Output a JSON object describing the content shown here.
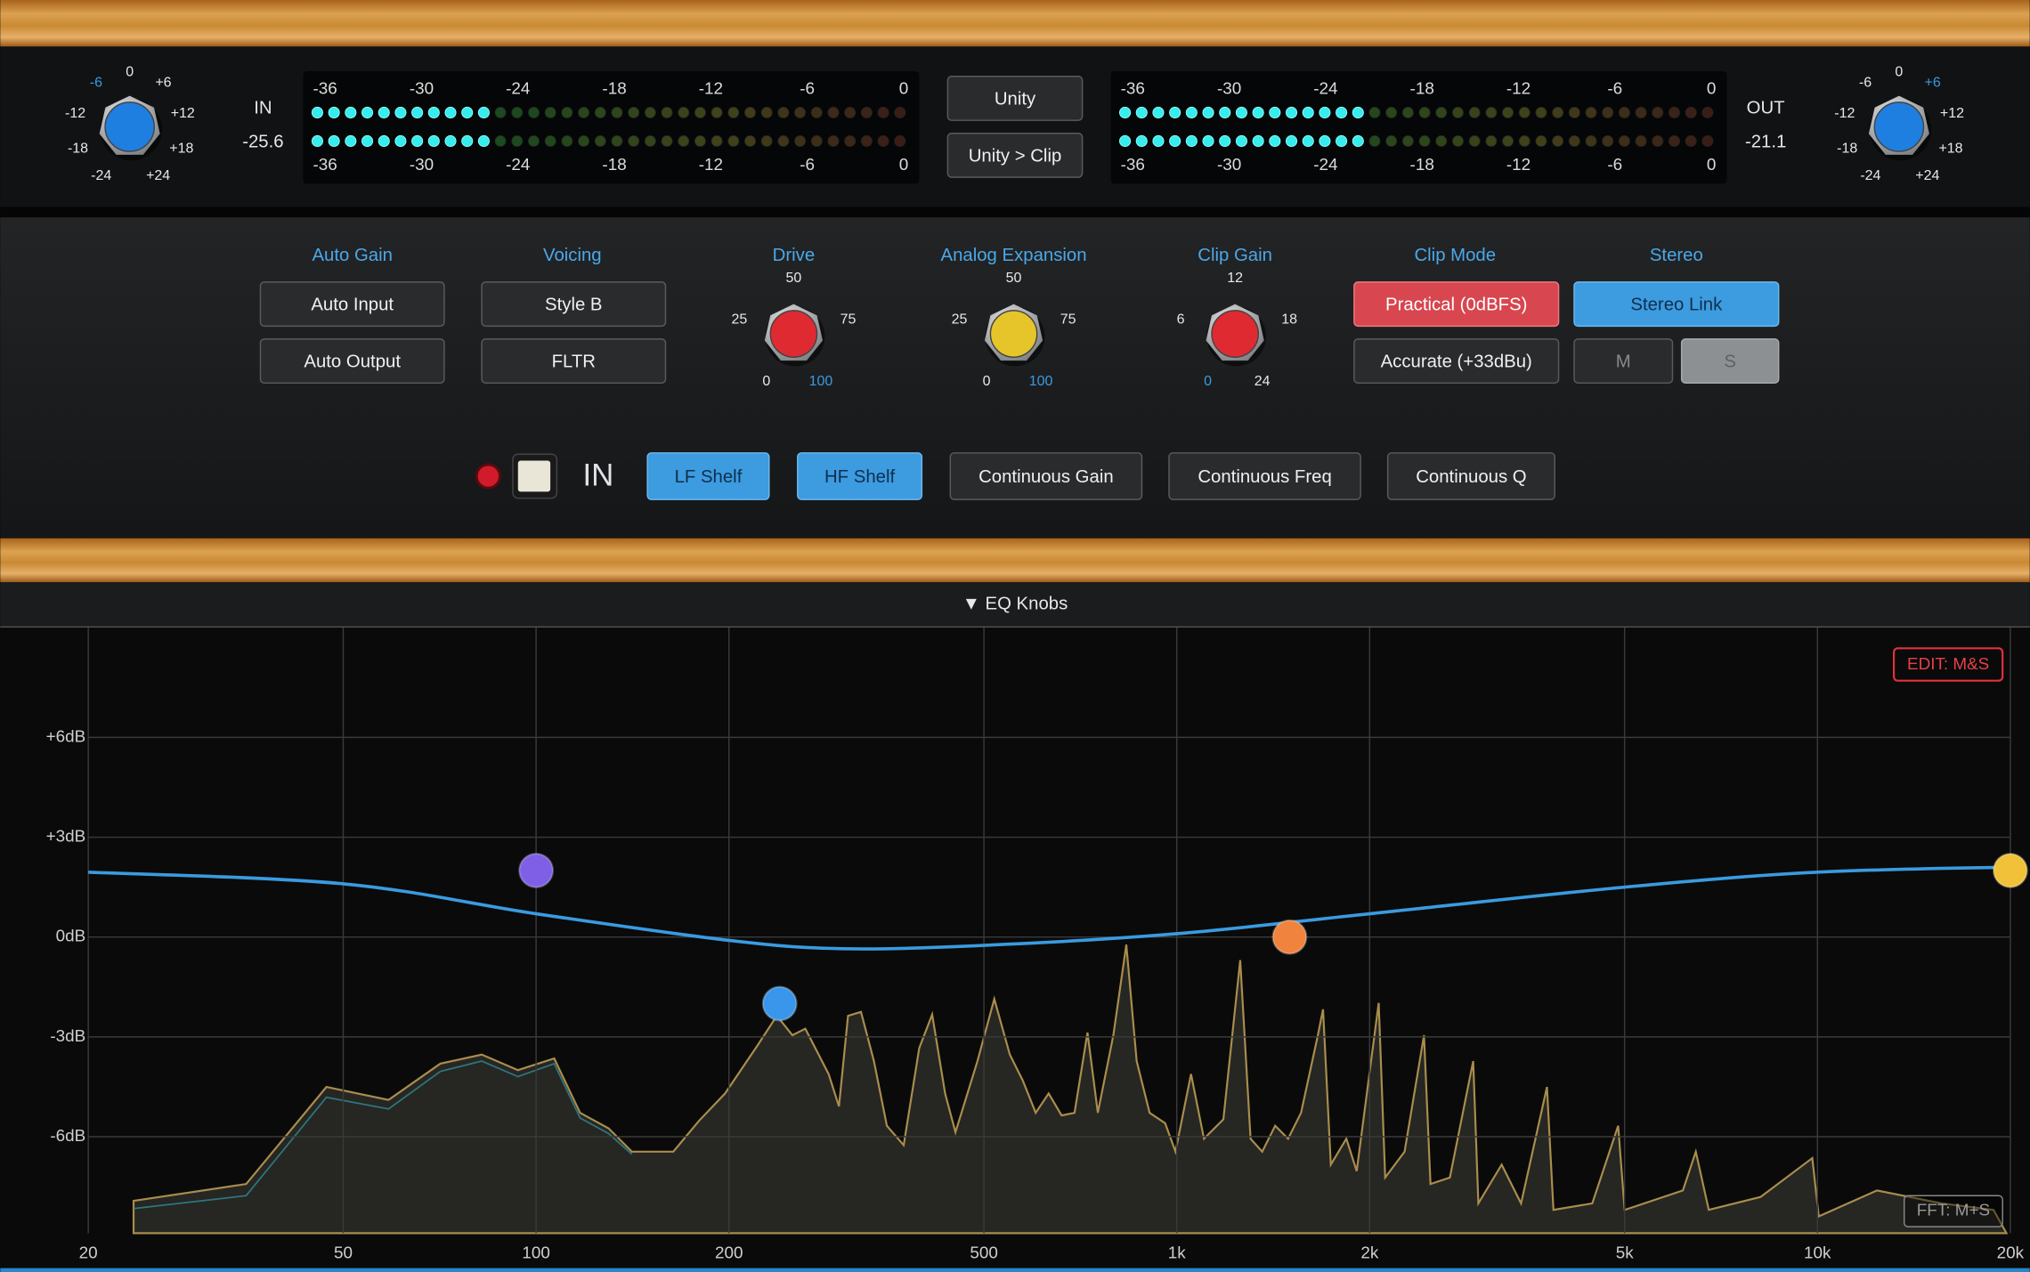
{
  "input": {
    "label": "IN",
    "level": "-25.6",
    "knob": [
      "-6",
      "0",
      "+6",
      "-12",
      "+12",
      "-18",
      "+18",
      "-24",
      "+24"
    ]
  },
  "output": {
    "label": "OUT",
    "level": "-21.1",
    "knob": [
      "-6",
      "0",
      "+6",
      "-12",
      "+12",
      "-18",
      "+18",
      "-24",
      "+24"
    ]
  },
  "meter_scale": [
    "-36",
    "-30",
    "-24",
    "-18",
    "-12",
    "-6",
    "0"
  ],
  "center_buttons": [
    "Unity",
    "Unity > Clip"
  ],
  "sections": [
    {
      "title": "Auto Gain",
      "buttons": [
        "Auto Input",
        "Auto Output"
      ]
    },
    {
      "title": "Voicing",
      "buttons": [
        "Style B",
        "FLTR"
      ]
    },
    {
      "title": "Drive",
      "knob": [
        "50",
        "25",
        "75",
        "0",
        "100"
      ]
    },
    {
      "title": "Analog Expansion",
      "knob": [
        "50",
        "25",
        "75",
        "0",
        "100"
      ]
    },
    {
      "title": "Clip Gain",
      "knob": [
        "12",
        "6",
        "18",
        "0",
        "24"
      ]
    },
    {
      "title": "Clip Mode",
      "buttons": [
        "Practical (0dBFS)",
        "Accurate (+33dBu)"
      ]
    },
    {
      "title": "Stereo",
      "buttons": [
        "Stereo Link",
        "M",
        "S"
      ]
    }
  ],
  "eq_bar": {
    "in_label": "IN",
    "buttons": [
      "LF Shelf",
      "HF Shelf",
      "Continuous Gain",
      "Continuous Freq",
      "Continuous Q"
    ]
  },
  "eq_panel": {
    "header": "▼ EQ Knobs",
    "edit_badge": "EDIT: M&S",
    "fft_badge": "FFT: M+S",
    "graph": {
      "log_x": true,
      "xlim": [
        20,
        20000
      ],
      "ylim": [
        -8.9,
        9.3
      ],
      "xticks": [
        20,
        50,
        100,
        200,
        500,
        {
          "value": 1000,
          "label": "1k"
        },
        {
          "value": 2000,
          "label": "2k"
        },
        {
          "value": 5000,
          "label": "5k"
        },
        {
          "value": 10000,
          "label": "10k"
        },
        {
          "value": 20000,
          "label": "20k"
        }
      ],
      "yticks": [
        {
          "value": 6,
          "label": "+6dB"
        },
        {
          "value": 3,
          "label": "+3dB"
        },
        {
          "value": 0,
          "label": "0dB"
        },
        {
          "value": -3,
          "label": "-3dB"
        },
        {
          "value": -6,
          "label": "-6dB"
        }
      ],
      "curve": {
        "color": "#3a9be0",
        "freq": [
          20,
          50,
          100,
          200,
          300,
          500,
          1000,
          2000,
          5000,
          10000,
          20000
        ],
        "gain": [
          1.95,
          1.6,
          0.7,
          -0.1,
          -0.35,
          -0.25,
          0.1,
          0.7,
          1.5,
          1.95,
          2.1
        ]
      },
      "nodes": [
        {
          "freq": 100,
          "gain": 2.0,
          "color": "#7f5fe6"
        },
        {
          "freq": 240,
          "gain": -2.0,
          "color": "#3a96ea"
        },
        {
          "freq": 1500,
          "gain": 0.0,
          "color": "#f0843e"
        },
        {
          "freq": 20000,
          "gain": 2.0,
          "color": "#f2c13a"
        }
      ]
    }
  }
}
